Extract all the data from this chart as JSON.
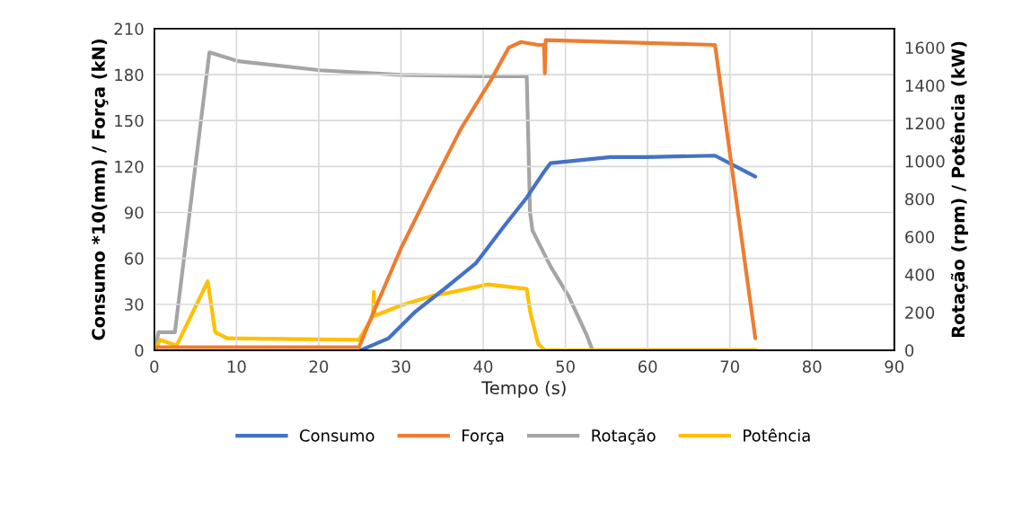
{
  "chart_data": {
    "type": "line",
    "xlabel": "Tempo (s)",
    "ylabel": "Consumo *10(mm) / Força (kN)",
    "y2label": "Rotação (rpm) / Potência (kW)",
    "xlim": [
      0,
      90
    ],
    "xticks": [
      0,
      10,
      20,
      30,
      40,
      50,
      60,
      70,
      80,
      90
    ],
    "ylim": [
      0,
      210
    ],
    "yticks": [
      0,
      30,
      60,
      90,
      120,
      150,
      180,
      210
    ],
    "y2lim": [
      0,
      1700
    ],
    "y2ticks": [
      0,
      200,
      400,
      600,
      800,
      1000,
      1200,
      1400,
      1600
    ],
    "grid": true,
    "legend": "bottom",
    "line_style": "solid",
    "marker": "none",
    "series": [
      {
        "name": "Consumo",
        "color": "#4472c4",
        "x": [
          25.1,
          28.5,
          31.8,
          35.5,
          39.1,
          42.7,
          45.3,
          47.5,
          48.2,
          55.5,
          59.9,
          68.2,
          73.1
        ],
        "values": [
          0,
          7.8,
          25.4,
          41,
          56.7,
          82.1,
          99.7,
          117.3,
          122.2,
          126.1,
          126.1,
          127.1,
          113.4
        ]
      },
      {
        "name": "Força",
        "color": "#ed7d31",
        "x": [
          0,
          24.9,
          26.4,
          30,
          33.6,
          37.3,
          40.9,
          43.1,
          44.6,
          46.7,
          47.4,
          47.5,
          47.6,
          68.2,
          73.1
        ],
        "values": [
          2,
          2,
          21.5,
          66.5,
          105.6,
          144.7,
          176,
          197.5,
          201.3,
          199.4,
          199.4,
          180.8,
          202.5,
          199.4,
          7.8
        ]
      },
      {
        "name": "Rotação",
        "color": "#a5a5a5",
        "axis": "y2",
        "x": [
          0.1,
          0.5,
          2.5,
          6.7,
          10.2,
          20.2,
          30,
          40.2,
          45.3,
          45.7,
          46.0,
          48.2,
          50.4,
          52.6,
          53.3,
          73.1
        ],
        "values": [
          0,
          95,
          95,
          1575,
          1528,
          1480,
          1456,
          1448,
          1448,
          728,
          633,
          443,
          285,
          79,
          0,
          0
        ]
      },
      {
        "name": "Potência",
        "color": "#ffc000",
        "axis": "y2",
        "x": [
          0.1,
          0.7,
          2.7,
          6.5,
          7.4,
          8.9,
          24.9,
          26.4,
          26.6,
          26.7,
          26.8,
          30,
          33.6,
          37.3,
          40.6,
          45.3,
          45.7,
          46.7,
          47.5,
          73.2
        ],
        "values": [
          0,
          55,
          24,
          364,
          95,
          63,
          55,
          166,
          180,
          309,
          182,
          237,
          285,
          317,
          348,
          324,
          206,
          32,
          0,
          0
        ]
      }
    ]
  }
}
